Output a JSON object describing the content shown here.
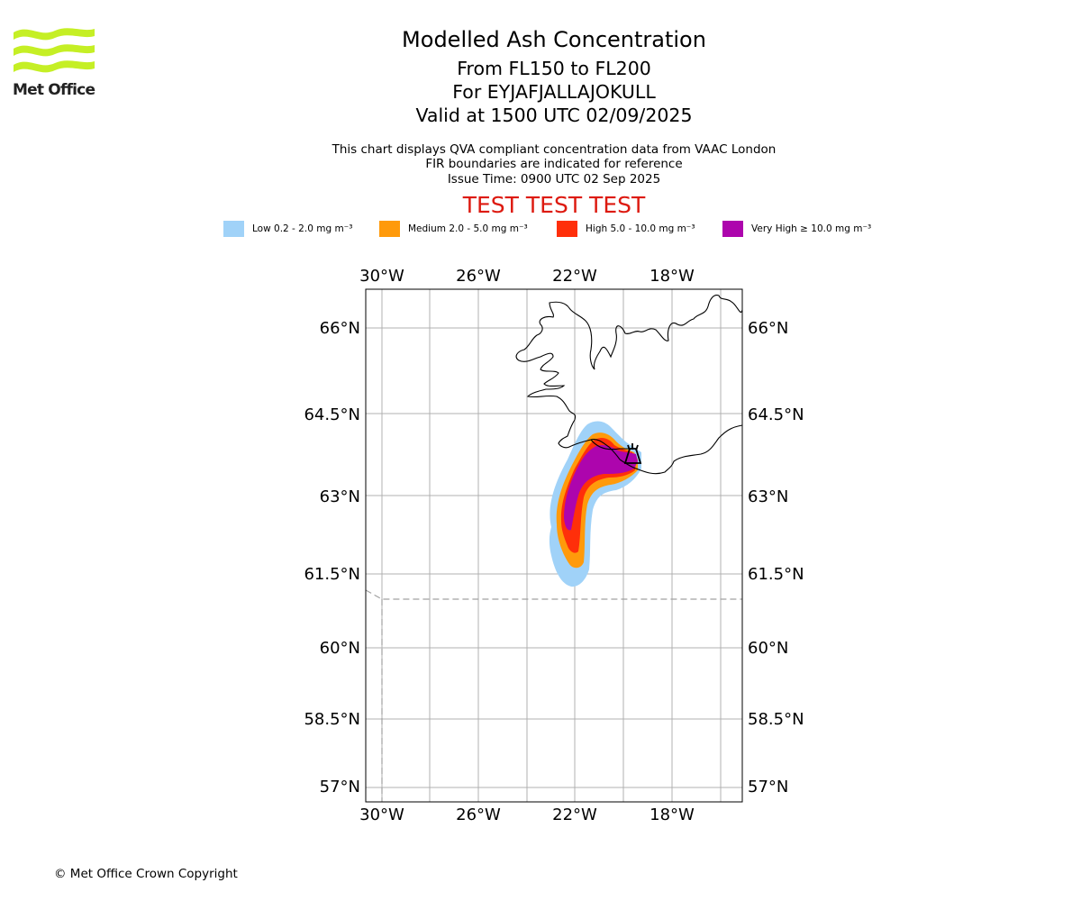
{
  "logo": {
    "text": "Met Office"
  },
  "title": "Modelled Ash Concentration",
  "flight_levels": "From FL150 to FL200",
  "volcano_line": "For EYJAFJALLAJOKULL",
  "valid_line": "Valid at 1500 UTC 02/09/2025",
  "notes": {
    "line1": "This chart displays QVA compliant concentration data from VAAC London",
    "line2": "FIR boundaries are indicated for reference",
    "line3": "Issue Time: 0900 UTC 02 Sep 2025"
  },
  "test_banner": "TEST TEST TEST",
  "legend": [
    {
      "label": "Low 0.2 - 2.0 mg m⁻³",
      "color": "#a0d2f8"
    },
    {
      "label": "Medium 2.0 - 5.0 mg m⁻³",
      "color": "#ff9a0b"
    },
    {
      "label": "High 5.0 - 10.0 mg m⁻³",
      "color": "#ff2f0a"
    },
    {
      "label": "Very High ≥ 10.0 mg m⁻³",
      "color": "#ad05ad"
    }
  ],
  "map": {
    "lon_labels": [
      "30°W",
      "26°W",
      "22°W",
      "18°W"
    ],
    "lat_labels": [
      "66°N",
      "64.5°N",
      "63°N",
      "61.5°N",
      "60°N",
      "58.5°N",
      "57°N"
    ]
  },
  "copyright": "© Met Office Crown Copyright"
}
